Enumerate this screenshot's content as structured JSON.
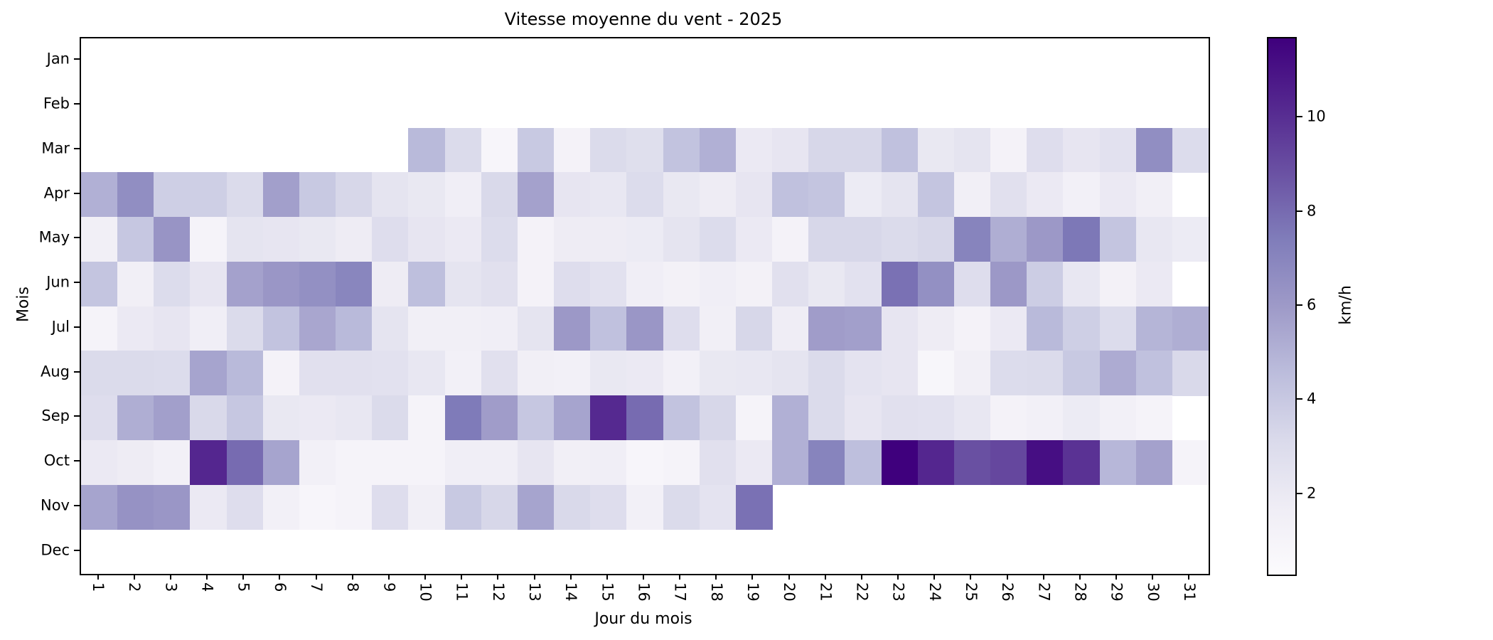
{
  "title": "Vitesse moyenne du vent - 2025",
  "chart_data": {
    "type": "heatmap",
    "title": "Vitesse moyenne du vent - 2025",
    "xlabel": "Jour du mois",
    "ylabel": "Mois",
    "colorbar_label": "km/h",
    "colorbar_ticks": [
      2,
      4,
      6,
      8,
      10
    ],
    "colormap": "Purples",
    "vmin": 0.3,
    "vmax": 11.7,
    "grid": false,
    "x_ticklabels": [
      "1",
      "2",
      "3",
      "4",
      "5",
      "6",
      "7",
      "8",
      "9",
      "10",
      "11",
      "12",
      "13",
      "14",
      "15",
      "16",
      "17",
      "18",
      "19",
      "20",
      "21",
      "22",
      "23",
      "24",
      "25",
      "26",
      "27",
      "28",
      "29",
      "30",
      "31"
    ],
    "y_ticklabels": [
      "Jan",
      "Feb",
      "Mar",
      "Apr",
      "May",
      "Jun",
      "Jul",
      "Aug",
      "Sep",
      "Oct",
      "Nov",
      "Dec"
    ],
    "values_unit": "km/h",
    "values": [
      [
        null,
        null,
        null,
        null,
        null,
        null,
        null,
        null,
        null,
        null,
        null,
        null,
        null,
        null,
        null,
        null,
        null,
        null,
        null,
        null,
        null,
        null,
        null,
        null,
        null,
        null,
        null,
        null,
        null,
        null,
        null
      ],
      [
        null,
        null,
        null,
        null,
        null,
        null,
        null,
        null,
        null,
        null,
        null,
        null,
        null,
        null,
        null,
        null,
        null,
        null,
        null,
        null,
        null,
        null,
        null,
        null,
        null,
        null,
        null,
        null,
        null,
        null,
        null
      ],
      [
        null,
        null,
        null,
        null,
        null,
        null,
        null,
        null,
        null,
        4.7,
        3.1,
        0.9,
        4.0,
        1.2,
        3.1,
        2.8,
        4.3,
        5.1,
        2.0,
        2.3,
        3.3,
        3.3,
        4.4,
        2.1,
        2.4,
        1.2,
        2.9,
        2.3,
        2.6,
        6.6,
        3.0
      ],
      [
        5.1,
        6.6,
        3.7,
        3.7,
        3.1,
        5.8,
        4.0,
        3.3,
        2.4,
        2.1,
        1.6,
        3.2,
        5.7,
        2.3,
        2.2,
        3.0,
        2.1,
        1.8,
        2.3,
        4.4,
        4.2,
        1.9,
        2.4,
        4.2,
        1.5,
        2.7,
        2.0,
        1.4,
        2.0,
        1.5,
        null
      ],
      [
        1.5,
        4.1,
        6.3,
        1.1,
        2.4,
        2.3,
        2.1,
        1.8,
        2.9,
        2.3,
        2.0,
        3.0,
        1.2,
        1.8,
        1.8,
        1.9,
        2.4,
        3.0,
        2.0,
        1.2,
        3.3,
        3.3,
        3.1,
        3.3,
        7.1,
        5.2,
        6.1,
        7.6,
        4.2,
        2.2,
        1.9
      ],
      [
        4.2,
        1.5,
        3.0,
        2.3,
        5.7,
        6.2,
        6.5,
        7.0,
        1.8,
        4.5,
        2.4,
        2.7,
        1.2,
        2.9,
        2.6,
        1.6,
        1.3,
        1.6,
        1.3,
        2.7,
        2.1,
        2.6,
        7.8,
        6.5,
        2.9,
        6.1,
        3.8,
        2.2,
        1.3,
        2.0,
        null
      ],
      [
        1.1,
        2.0,
        2.3,
        1.6,
        3.1,
        4.3,
        5.5,
        4.7,
        2.4,
        1.5,
        1.5,
        1.6,
        2.4,
        6.1,
        4.4,
        6.2,
        2.9,
        1.5,
        3.3,
        1.7,
        5.9,
        5.8,
        2.3,
        1.8,
        1.2,
        2.0,
        4.7,
        3.7,
        3.0,
        4.9,
        5.2
      ],
      [
        3.1,
        3.1,
        3.0,
        5.6,
        4.7,
        1.2,
        2.7,
        2.7,
        2.6,
        2.2,
        1.4,
        2.7,
        1.5,
        1.4,
        2.1,
        2.0,
        1.4,
        2.1,
        2.2,
        2.4,
        3.1,
        2.5,
        2.3,
        0.8,
        1.5,
        3.0,
        3.1,
        4.0,
        5.3,
        4.4,
        3.2
      ],
      [
        2.9,
        5.2,
        5.8,
        3.2,
        4.1,
        2.1,
        2.0,
        2.2,
        3.1,
        1.1,
        7.5,
        5.9,
        4.1,
        5.6,
        10.2,
        8.0,
        4.3,
        3.3,
        1.1,
        5.1,
        3.1,
        2.3,
        2.7,
        2.6,
        2.2,
        1.2,
        1.4,
        1.9,
        1.4,
        1.1,
        null
      ],
      [
        2.0,
        1.8,
        1.4,
        10.3,
        8.0,
        5.6,
        1.4,
        1.1,
        1.1,
        1.1,
        1.6,
        1.6,
        2.3,
        1.5,
        1.6,
        0.9,
        1.1,
        2.7,
        2.0,
        5.1,
        7.1,
        4.5,
        11.7,
        10.3,
        8.9,
        9.2,
        11.2,
        9.9,
        4.8,
        5.7,
        1.1
      ],
      [
        5.6,
        6.4,
        6.2,
        2.0,
        2.9,
        1.4,
        0.9,
        1.1,
        2.9,
        1.5,
        4.0,
        3.3,
        5.6,
        3.2,
        2.9,
        1.4,
        3.1,
        2.5,
        7.8,
        null,
        null,
        null,
        null,
        null,
        null,
        null,
        null,
        null,
        null,
        null,
        null
      ],
      [
        null,
        null,
        null,
        null,
        null,
        null,
        null,
        null,
        null,
        null,
        null,
        null,
        null,
        null,
        null,
        null,
        null,
        null,
        null,
        null,
        null,
        null,
        null,
        null,
        null,
        null,
        null,
        null,
        null,
        null,
        null
      ]
    ],
    "colormap_stops": [
      [
        0.0,
        "#fcfbfd"
      ],
      [
        0.125,
        "#efedf5"
      ],
      [
        0.25,
        "#dadaeb"
      ],
      [
        0.375,
        "#bcbddc"
      ],
      [
        0.5,
        "#9e9ac8"
      ],
      [
        0.625,
        "#807dba"
      ],
      [
        0.75,
        "#6a51a3"
      ],
      [
        0.875,
        "#54278f"
      ],
      [
        1.0,
        "#3f007d"
      ]
    ]
  }
}
